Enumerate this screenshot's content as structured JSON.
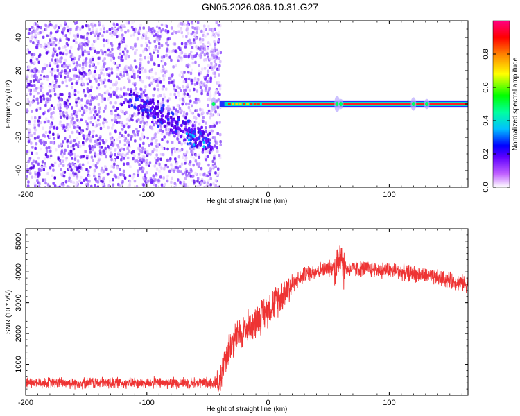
{
  "title": "GN05.2026.086.10.31.G27",
  "chart_data": [
    {
      "type": "heatmap",
      "xlabel": "Height of straight line (km)",
      "ylabel": "Frequency (Hz)",
      "xlim": [
        -200,
        165
      ],
      "ylim": [
        -50,
        50
      ],
      "xticks": [
        -200,
        -100,
        0,
        100
      ],
      "yticks": [
        -40,
        -20,
        0,
        20,
        40
      ],
      "grid": false,
      "description_features": {
        "noise_region_x": [
          -200,
          -40
        ],
        "signal_line_frequency": 0,
        "signal_start_x": -40
      },
      "colorbar": {
        "label": "Normalized spectral amplitude",
        "range": [
          0,
          1
        ],
        "ticks": [
          0.0,
          0.2,
          0.4,
          0.6,
          0.8
        ],
        "tick_labels": [
          "0.0",
          "0.2",
          "0.4",
          "0.6",
          "0.8"
        ],
        "colors": [
          "#ffffff",
          "#b000ff",
          "#0000ff",
          "#00ffff",
          "#00ff00",
          "#ffff00",
          "#ff0000",
          "#ff0080"
        ]
      }
    },
    {
      "type": "line",
      "xlabel": "Height of straight line (km)",
      "ylabel": "SNR (10 * v/v)",
      "xlim": [
        -200,
        165
      ],
      "ylim": [
        0,
        5400
      ],
      "xticks": [
        -200,
        -100,
        0,
        100
      ],
      "yticks": [
        1000,
        2000,
        3000,
        4000,
        5000
      ],
      "grid": false,
      "line_color": "#ee3333",
      "series_profile": {
        "x": [
          -200,
          -150,
          -100,
          -60,
          -45,
          -40,
          -35,
          -30,
          -20,
          -10,
          0,
          10,
          20,
          30,
          40,
          50,
          55,
          58,
          60,
          62,
          65,
          80,
          100,
          120,
          140,
          160,
          165
        ],
        "y": [
          400,
          400,
          400,
          400,
          410,
          450,
          1300,
          1700,
          2100,
          2400,
          2800,
          3200,
          3600,
          3900,
          4050,
          4100,
          4150,
          4300,
          4800,
          4200,
          4100,
          4100,
          4050,
          3950,
          3800,
          3650,
          3600
        ]
      }
    }
  ]
}
